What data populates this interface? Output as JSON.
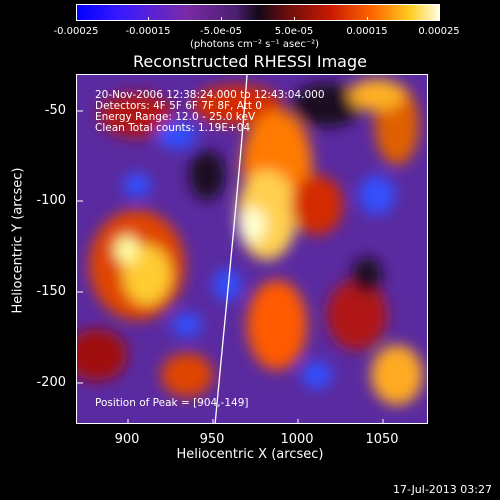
{
  "colorbar": {
    "ticks": [
      "-0.00025",
      "-0.00015",
      "-5.0e-05",
      "5.0e-05",
      "0.00015",
      "0.00025"
    ],
    "units": "(photons cm⁻² s⁻¹ asec⁻²)"
  },
  "title": "Reconstructed RHESSI Image",
  "annotation": {
    "time": "20-Nov-2006 12:38:24.000 to 12:43:04.000",
    "detectors": "Detectors: 4F 5F 6F 7F 8F, Att 0",
    "energy": "Energy Range: 12.0 - 25.0 keV",
    "clean": "Clean    Total counts: 1.19E+04",
    "peak": "Position of Peak = [904,-149]"
  },
  "axes": {
    "xlabel": "Heliocentric X (arcsec)",
    "ylabel": "Heliocentric Y (arcsec)",
    "xticks": [
      "900",
      "950",
      "1000",
      "1050"
    ],
    "yticks": [
      "-50",
      "-100",
      "-150",
      "-200"
    ]
  },
  "timestamp": "17-Jul-2013 03:27"
}
